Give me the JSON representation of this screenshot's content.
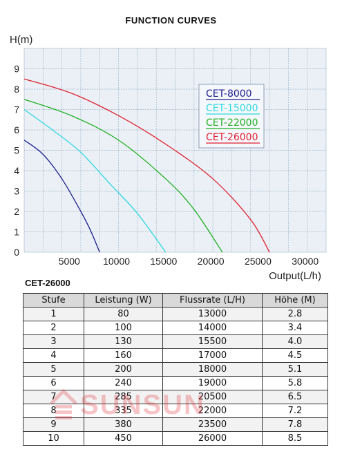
{
  "chart_data": {
    "type": "line",
    "title": "FUNCTION CURVES",
    "ylabel": "H(m)",
    "xlabel": "Output(L/h)",
    "xlim": [
      0,
      32000
    ],
    "ylim": [
      0,
      10
    ],
    "xticks": [
      5000,
      10000,
      15000,
      20000,
      25000,
      30000
    ],
    "yticks": [
      0,
      1,
      2,
      3,
      4,
      5,
      6,
      7,
      8,
      9
    ],
    "grid": true,
    "legend_position": "top-right",
    "series": [
      {
        "name": "CET-8000",
        "color": "#1c1c8c",
        "x": [
          0,
          2000,
          4000,
          6000,
          7000,
          8000
        ],
        "y": [
          5.5,
          4.8,
          3.6,
          2.0,
          1.1,
          0
        ]
      },
      {
        "name": "CET-15000",
        "color": "#2fd8e0",
        "x": [
          0,
          3000,
          6000,
          9000,
          12000,
          15000
        ],
        "y": [
          7.0,
          6.0,
          4.9,
          3.4,
          1.9,
          0
        ]
      },
      {
        "name": "CET-22000",
        "color": "#22b022",
        "x": [
          0,
          5000,
          10000,
          15000,
          18000,
          21000
        ],
        "y": [
          7.5,
          6.7,
          5.5,
          3.6,
          2.1,
          0
        ]
      },
      {
        "name": "CET-26000",
        "color": "#e02030",
        "x": [
          0,
          5000,
          10000,
          15000,
          20000,
          24000,
          26000
        ],
        "y": [
          8.5,
          7.8,
          6.7,
          5.3,
          3.6,
          1.6,
          0
        ]
      }
    ]
  },
  "table": {
    "title": "CET-26000",
    "columns": [
      "Stufe",
      "Leistung (W)",
      "Flussrate (L/H)",
      "Höhe (M)"
    ],
    "rows": [
      [
        "1",
        "80",
        "13000",
        "2.8"
      ],
      [
        "2",
        "100",
        "14000",
        "3.4"
      ],
      [
        "3",
        "130",
        "15500",
        "4.0"
      ],
      [
        "4",
        "160",
        "17000",
        "4.5"
      ],
      [
        "5",
        "200",
        "18000",
        "5.1"
      ],
      [
        "6",
        "240",
        "19000",
        "5.8"
      ],
      [
        "7",
        "285",
        "20500",
        "6.5"
      ],
      [
        "8",
        "335",
        "22000",
        "7.2"
      ],
      [
        "9",
        "380",
        "23500",
        "7.8"
      ],
      [
        "10",
        "450",
        "26000",
        "8.5"
      ]
    ]
  },
  "watermark": {
    "text": "SUNSUN",
    "color": "#e0303a"
  }
}
